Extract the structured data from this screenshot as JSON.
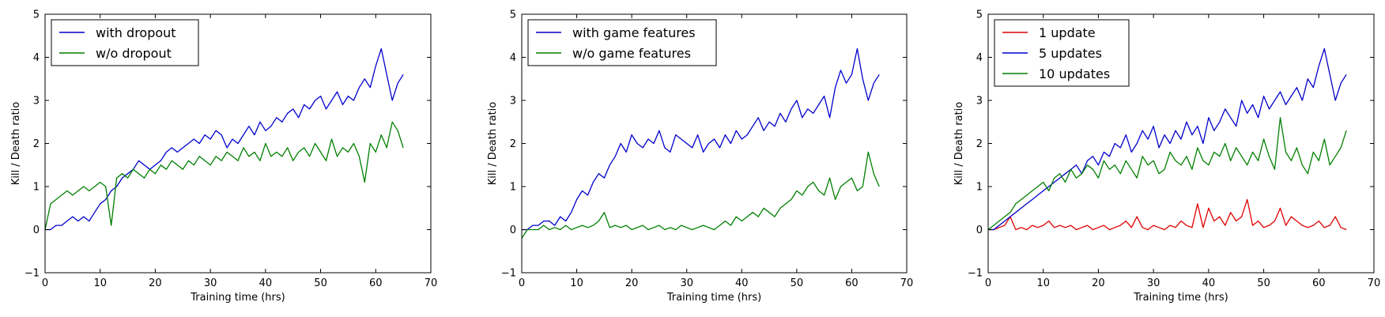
{
  "colors": {
    "blue": "#0000cc",
    "green": "#007f00",
    "red": "#e00000"
  },
  "chart_data": [
    {
      "type": "line",
      "title": "",
      "xlabel": "Training time (hrs)",
      "ylabel": "Kill / Death ratio",
      "xlim": [
        0,
        70
      ],
      "ylim": [
        -1,
        5
      ],
      "xticks": [
        "0",
        "10",
        "20",
        "30",
        "40",
        "50",
        "60",
        "70"
      ],
      "yticks": [
        "−1",
        "0",
        "1",
        "2",
        "3",
        "4",
        "5"
      ],
      "legend": "top-left",
      "grid": false,
      "series": [
        {
          "name": "with dropout",
          "color": "#0000cc",
          "x": [
            0,
            1,
            2,
            3,
            4,
            5,
            6,
            7,
            8,
            9,
            10,
            11,
            12,
            13,
            14,
            15,
            16,
            17,
            18,
            19,
            20,
            21,
            22,
            23,
            24,
            25,
            26,
            27,
            28,
            29,
            30,
            31,
            32,
            33,
            34,
            35,
            36,
            37,
            38,
            39,
            40,
            41,
            42,
            43,
            44,
            45,
            46,
            47,
            48,
            49,
            50,
            51,
            52,
            53,
            54,
            55,
            56,
            57,
            58,
            59,
            60,
            61,
            62,
            63,
            64,
            65
          ],
          "y": [
            0,
            0,
            0.1,
            0.1,
            0.2,
            0.3,
            0.2,
            0.3,
            0.2,
            0.4,
            0.6,
            0.7,
            0.9,
            1.0,
            1.2,
            1.3,
            1.4,
            1.6,
            1.5,
            1.4,
            1.5,
            1.6,
            1.8,
            1.9,
            1.8,
            1.9,
            2.0,
            2.1,
            2.0,
            2.2,
            2.1,
            2.3,
            2.2,
            1.9,
            2.1,
            2.0,
            2.2,
            2.4,
            2.2,
            2.5,
            2.3,
            2.4,
            2.6,
            2.5,
            2.7,
            2.8,
            2.6,
            2.9,
            2.8,
            3.0,
            3.1,
            2.8,
            3.0,
            3.2,
            2.9,
            3.1,
            3.0,
            3.3,
            3.5,
            3.3,
            3.8,
            4.2,
            3.6,
            3.0,
            3.4,
            3.6
          ]
        },
        {
          "name": "w/o dropout",
          "color": "#007f00",
          "x": [
            0,
            1,
            2,
            3,
            4,
            5,
            6,
            7,
            8,
            9,
            10,
            11,
            12,
            13,
            14,
            15,
            16,
            17,
            18,
            19,
            20,
            21,
            22,
            23,
            24,
            25,
            26,
            27,
            28,
            29,
            30,
            31,
            32,
            33,
            34,
            35,
            36,
            37,
            38,
            39,
            40,
            41,
            42,
            43,
            44,
            45,
            46,
            47,
            48,
            49,
            50,
            51,
            52,
            53,
            54,
            55,
            56,
            57,
            58,
            59,
            60,
            61,
            62,
            63,
            64,
            65
          ],
          "y": [
            0,
            0.6,
            0.7,
            0.8,
            0.9,
            0.8,
            0.9,
            1.0,
            0.9,
            1.0,
            1.1,
            1.0,
            0.1,
            1.2,
            1.3,
            1.2,
            1.4,
            1.3,
            1.2,
            1.4,
            1.3,
            1.5,
            1.4,
            1.6,
            1.5,
            1.4,
            1.6,
            1.5,
            1.7,
            1.6,
            1.5,
            1.7,
            1.6,
            1.8,
            1.7,
            1.6,
            1.9,
            1.7,
            1.8,
            1.6,
            2.0,
            1.7,
            1.8,
            1.7,
            1.9,
            1.6,
            1.8,
            1.9,
            1.7,
            2.0,
            1.8,
            1.6,
            2.1,
            1.7,
            1.9,
            1.8,
            2.0,
            1.7,
            1.1,
            2.0,
            1.8,
            2.2,
            1.9,
            2.5,
            2.3,
            1.9
          ]
        }
      ]
    },
    {
      "type": "line",
      "title": "",
      "xlabel": "Training time (hrs)",
      "ylabel": "Kill / Death ratio",
      "xlim": [
        0,
        70
      ],
      "ylim": [
        -1,
        5
      ],
      "xticks": [
        "0",
        "10",
        "20",
        "30",
        "40",
        "50",
        "60",
        "70"
      ],
      "yticks": [
        "−1",
        "0",
        "1",
        "2",
        "3",
        "4",
        "5"
      ],
      "legend": "top-left",
      "grid": false,
      "series": [
        {
          "name": "with game features",
          "color": "#0000cc",
          "x": [
            0,
            1,
            2,
            3,
            4,
            5,
            6,
            7,
            8,
            9,
            10,
            11,
            12,
            13,
            14,
            15,
            16,
            17,
            18,
            19,
            20,
            21,
            22,
            23,
            24,
            25,
            26,
            27,
            28,
            29,
            30,
            31,
            32,
            33,
            34,
            35,
            36,
            37,
            38,
            39,
            40,
            41,
            42,
            43,
            44,
            45,
            46,
            47,
            48,
            49,
            50,
            51,
            52,
            53,
            54,
            55,
            56,
            57,
            58,
            59,
            60,
            61,
            62,
            63,
            64,
            65
          ],
          "y": [
            0,
            0,
            0.1,
            0.1,
            0.2,
            0.2,
            0.1,
            0.3,
            0.2,
            0.4,
            0.7,
            0.9,
            0.8,
            1.1,
            1.3,
            1.2,
            1.5,
            1.7,
            2.0,
            1.8,
            2.2,
            2.0,
            1.9,
            2.1,
            2.0,
            2.3,
            1.9,
            1.8,
            2.2,
            2.1,
            2.0,
            1.9,
            2.2,
            1.8,
            2.0,
            2.1,
            1.9,
            2.2,
            2.0,
            2.3,
            2.1,
            2.2,
            2.4,
            2.6,
            2.3,
            2.5,
            2.4,
            2.7,
            2.5,
            2.8,
            3.0,
            2.6,
            2.8,
            2.7,
            2.9,
            3.1,
            2.6,
            3.3,
            3.7,
            3.4,
            3.6,
            4.2,
            3.5,
            3.0,
            3.4,
            3.6
          ]
        },
        {
          "name": "w/o game features",
          "color": "#007f00",
          "x": [
            0,
            1,
            2,
            3,
            4,
            5,
            6,
            7,
            8,
            9,
            10,
            11,
            12,
            13,
            14,
            15,
            16,
            17,
            18,
            19,
            20,
            21,
            22,
            23,
            24,
            25,
            26,
            27,
            28,
            29,
            30,
            31,
            32,
            33,
            34,
            35,
            36,
            37,
            38,
            39,
            40,
            41,
            42,
            43,
            44,
            45,
            46,
            47,
            48,
            49,
            50,
            51,
            52,
            53,
            54,
            55,
            56,
            57,
            58,
            59,
            60,
            61,
            62,
            63,
            64,
            65
          ],
          "y": [
            -0.2,
            0,
            0,
            0,
            0.1,
            0,
            0.05,
            0,
            0.1,
            0,
            0.05,
            0.1,
            0.05,
            0.1,
            0.2,
            0.4,
            0.05,
            0.1,
            0.05,
            0.1,
            0,
            0.05,
            0.1,
            0,
            0.05,
            0.1,
            0,
            0.05,
            0,
            0.1,
            0.05,
            0,
            0.05,
            0.1,
            0.05,
            0,
            0.1,
            0.2,
            0.1,
            0.3,
            0.2,
            0.3,
            0.4,
            0.3,
            0.5,
            0.4,
            0.3,
            0.5,
            0.6,
            0.7,
            0.9,
            0.8,
            1.0,
            1.1,
            0.9,
            0.8,
            1.2,
            0.7,
            1.0,
            1.1,
            1.2,
            0.9,
            1.0,
            1.8,
            1.3,
            1.0
          ]
        }
      ]
    },
    {
      "type": "line",
      "title": "",
      "xlabel": "Training time (hrs)",
      "ylabel": "Kill / Death ratio",
      "xlim": [
        0,
        70
      ],
      "ylim": [
        -1,
        5
      ],
      "xticks": [
        "0",
        "10",
        "20",
        "30",
        "40",
        "50",
        "60",
        "70"
      ],
      "yticks": [
        "−1",
        "0",
        "1",
        "2",
        "3",
        "4",
        "5"
      ],
      "legend": "top-left",
      "grid": false,
      "series": [
        {
          "name": "1 update",
          "color": "#e00000",
          "x": [
            0,
            1,
            2,
            3,
            4,
            5,
            6,
            7,
            8,
            9,
            10,
            11,
            12,
            13,
            14,
            15,
            16,
            17,
            18,
            19,
            20,
            21,
            22,
            23,
            24,
            25,
            26,
            27,
            28,
            29,
            30,
            31,
            32,
            33,
            34,
            35,
            36,
            37,
            38,
            39,
            40,
            41,
            42,
            43,
            44,
            45,
            46,
            47,
            48,
            49,
            50,
            51,
            52,
            53,
            54,
            55,
            56,
            57,
            58,
            59,
            60,
            61,
            62,
            63,
            64,
            65
          ],
          "y": [
            0,
            0,
            0.05,
            0.1,
            0.3,
            0,
            0.05,
            0,
            0.1,
            0.05,
            0.1,
            0.2,
            0.05,
            0.1,
            0.05,
            0.1,
            0,
            0.05,
            0.1,
            0,
            0.05,
            0.1,
            0,
            0.05,
            0.1,
            0.2,
            0.05,
            0.3,
            0.05,
            0,
            0.1,
            0.05,
            0,
            0.1,
            0.05,
            0.2,
            0.1,
            0.05,
            0.6,
            0.05,
            0.5,
            0.2,
            0.3,
            0.1,
            0.4,
            0.2,
            0.3,
            0.7,
            0.1,
            0.2,
            0.05,
            0.1,
            0.2,
            0.5,
            0.1,
            0.3,
            0.2,
            0.1,
            0.05,
            0.1,
            0.2,
            0.05,
            0.1,
            0.3,
            0.05,
            0
          ]
        },
        {
          "name": "5 updates",
          "color": "#0000cc",
          "x": [
            0,
            1,
            2,
            3,
            4,
            5,
            6,
            7,
            8,
            9,
            10,
            11,
            12,
            13,
            14,
            15,
            16,
            17,
            18,
            19,
            20,
            21,
            22,
            23,
            24,
            25,
            26,
            27,
            28,
            29,
            30,
            31,
            32,
            33,
            34,
            35,
            36,
            37,
            38,
            39,
            40,
            41,
            42,
            43,
            44,
            45,
            46,
            47,
            48,
            49,
            50,
            51,
            52,
            53,
            54,
            55,
            56,
            57,
            58,
            59,
            60,
            61,
            62,
            63,
            64,
            65
          ],
          "y": [
            0,
            0,
            0.1,
            0.2,
            0.3,
            0.4,
            0.5,
            0.6,
            0.7,
            0.8,
            0.9,
            1.0,
            1.1,
            1.2,
            1.3,
            1.4,
            1.5,
            1.3,
            1.6,
            1.7,
            1.5,
            1.8,
            1.7,
            2.0,
            1.9,
            2.2,
            1.8,
            2.0,
            2.3,
            2.1,
            2.4,
            1.9,
            2.2,
            2.0,
            2.3,
            2.1,
            2.5,
            2.2,
            2.4,
            2.0,
            2.6,
            2.3,
            2.5,
            2.8,
            2.6,
            2.4,
            3.0,
            2.7,
            2.9,
            2.6,
            3.1,
            2.8,
            3.0,
            3.2,
            2.9,
            3.1,
            3.3,
            3.0,
            3.5,
            3.3,
            3.8,
            4.2,
            3.6,
            3.0,
            3.4,
            3.6
          ]
        },
        {
          "name": "10 updates",
          "color": "#007f00",
          "x": [
            0,
            1,
            2,
            3,
            4,
            5,
            6,
            7,
            8,
            9,
            10,
            11,
            12,
            13,
            14,
            15,
            16,
            17,
            18,
            19,
            20,
            21,
            22,
            23,
            24,
            25,
            26,
            27,
            28,
            29,
            30,
            31,
            32,
            33,
            34,
            35,
            36,
            37,
            38,
            39,
            40,
            41,
            42,
            43,
            44,
            45,
            46,
            47,
            48,
            49,
            50,
            51,
            52,
            53,
            54,
            55,
            56,
            57,
            58,
            59,
            60,
            61,
            62,
            63,
            64,
            65
          ],
          "y": [
            0,
            0.1,
            0.2,
            0.3,
            0.4,
            0.6,
            0.7,
            0.8,
            0.9,
            1.0,
            1.1,
            0.9,
            1.2,
            1.3,
            1.1,
            1.4,
            1.2,
            1.3,
            1.5,
            1.4,
            1.2,
            1.6,
            1.4,
            1.5,
            1.3,
            1.6,
            1.4,
            1.2,
            1.7,
            1.5,
            1.6,
            1.3,
            1.4,
            1.8,
            1.6,
            1.5,
            1.7,
            1.4,
            1.9,
            1.6,
            1.5,
            1.8,
            1.7,
            2.0,
            1.6,
            1.9,
            1.7,
            1.5,
            1.8,
            1.6,
            2.1,
            1.7,
            1.4,
            2.6,
            1.8,
            1.6,
            1.9,
            1.5,
            1.3,
            1.8,
            1.6,
            2.1,
            1.5,
            1.7,
            1.9,
            2.3
          ]
        }
      ]
    }
  ]
}
